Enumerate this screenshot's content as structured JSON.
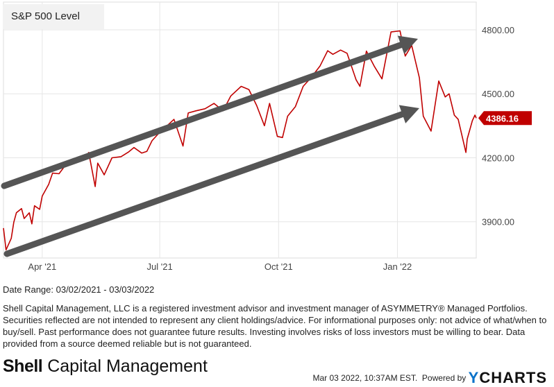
{
  "chart_data": {
    "type": "line",
    "title": "S&P 500 Level",
    "series": [
      {
        "name": "S&P 500 Level",
        "color": "#c00000",
        "x": [
          "2021-03-02",
          "2021-03-04",
          "2021-03-08",
          "2021-03-10",
          "2021-03-12",
          "2021-03-16",
          "2021-03-18",
          "2021-03-22",
          "2021-03-24",
          "2021-03-26",
          "2021-03-30",
          "2021-04-01",
          "2021-04-06",
          "2021-04-09",
          "2021-04-14",
          "2021-04-19",
          "2021-04-23",
          "2021-04-28",
          "2021-05-03",
          "2021-05-07",
          "2021-05-12",
          "2021-05-14",
          "2021-05-19",
          "2021-05-25",
          "2021-06-01",
          "2021-06-07",
          "2021-06-11",
          "2021-06-17",
          "2021-06-21",
          "2021-06-25",
          "2021-07-01",
          "2021-07-07",
          "2021-07-12",
          "2021-07-19",
          "2021-07-23",
          "2021-07-29",
          "2021-08-05",
          "2021-08-12",
          "2021-08-19",
          "2021-08-25",
          "2021-09-02",
          "2021-09-08",
          "2021-09-14",
          "2021-09-20",
          "2021-09-24",
          "2021-09-30",
          "2021-10-04",
          "2021-10-08",
          "2021-10-14",
          "2021-10-20",
          "2021-10-26",
          "2021-11-02",
          "2021-11-08",
          "2021-11-12",
          "2021-11-18",
          "2021-11-23",
          "2021-11-30",
          "2021-12-03",
          "2021-12-08",
          "2021-12-14",
          "2021-12-20",
          "2021-12-27",
          "2022-01-03",
          "2022-01-07",
          "2022-01-12",
          "2022-01-18",
          "2022-01-21",
          "2022-01-27",
          "2022-02-02",
          "2022-02-07",
          "2022-02-10",
          "2022-02-14",
          "2022-02-17",
          "2022-02-23",
          "2022-02-24",
          "2022-02-28",
          "2022-03-02",
          "2022-03-03"
        ],
        "values": [
          3870,
          3768,
          3822,
          3898,
          3942,
          3962,
          3915,
          3942,
          3890,
          3975,
          3958,
          4020,
          4075,
          4128,
          4125,
          4165,
          4182,
          4185,
          4192,
          4225,
          4065,
          4175,
          4120,
          4200,
          4205,
          4228,
          4248,
          4222,
          4230,
          4280,
          4320,
          4352,
          4380,
          4255,
          4410,
          4420,
          4430,
          4455,
          4420,
          4490,
          4535,
          4520,
          4445,
          4350,
          4455,
          4300,
          4295,
          4395,
          4440,
          4535,
          4575,
          4630,
          4702,
          4685,
          4705,
          4690,
          4565,
          4535,
          4700,
          4630,
          4570,
          4790,
          4795,
          4677,
          4727,
          4575,
          4395,
          4325,
          4560,
          4485,
          4500,
          4400,
          4380,
          4225,
          4288,
          4374,
          4400,
          4386
        ],
        "last_value_label": "4386.16"
      }
    ],
    "y_ticks": [
      "3900.00",
      "4200.00",
      "4500.00",
      "4800.00"
    ],
    "x_ticks": [
      "Apr '21",
      "Jul '21",
      "Oct '21",
      "Jan '22"
    ],
    "x_tick_dates": [
      "2021-04-01",
      "2021-07-01",
      "2021-10-01",
      "2022-01-01"
    ],
    "x_range": [
      "2021-03-02",
      "2022-03-03"
    ],
    "ylim": [
      3730,
      4930
    ],
    "grid": true,
    "annotations": [
      {
        "type": "arrow",
        "position": "upper channel line"
      },
      {
        "type": "arrow",
        "position": "lower channel line"
      }
    ]
  },
  "legend": {
    "label": "S&P 500 Level"
  },
  "date_range_text": "Date Range: 03/02/2021 - 03/03/2022",
  "disclaimer": "Shell Capital Management, LLC is a registered investment advisor and investment manager of ASYMMETRY® Managed Portfolios. Securities reflected are not intended to represent any client holdings/advice. For informational purposes only: not advice of what/when to buy/sell. Past performance does not guarantee future results. Investing involves risks of loss investors must be willing to bear. Data provided from a source deemed reliable but is not guaranteed.",
  "brand": {
    "bold": "Shell",
    "rest": " Capital Management"
  },
  "footer": {
    "timestamp": "Mar 03 2022, 10:37AM EST.",
    "powered_by": "Powered by",
    "logo_y": "Y",
    "logo_rest": "CHARTS"
  },
  "colors": {
    "line": "#c00000",
    "arrow": "#555555",
    "grid": "#e6e6e6"
  }
}
